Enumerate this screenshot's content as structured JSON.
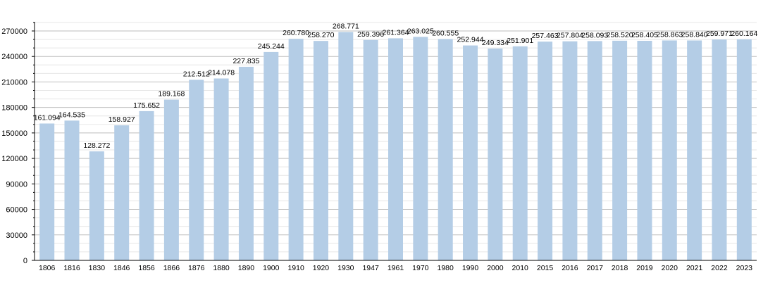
{
  "chart_data": {
    "type": "bar",
    "title": "",
    "xlabel": "",
    "ylabel": "",
    "ylim": [
      0,
      270000
    ],
    "yticks": [
      0,
      30000,
      60000,
      90000,
      120000,
      150000,
      180000,
      210000,
      240000,
      270000
    ],
    "ytick_labels": [
      "0",
      "30000",
      "60000",
      "90000",
      "120000",
      "150000",
      "180000",
      "210000",
      "240000",
      "270000"
    ],
    "grid": true,
    "bar_color": "#b4cde6",
    "categories": [
      "1806",
      "1816",
      "1830",
      "1846",
      "1856",
      "1866",
      "1876",
      "1880",
      "1890",
      "1900",
      "1910",
      "1920",
      "1930",
      "1947",
      "1961",
      "1970",
      "1980",
      "1990",
      "2000",
      "2010",
      "2015",
      "2016",
      "2017",
      "2018",
      "2019",
      "2020",
      "2021",
      "2022",
      "2023"
    ],
    "values": [
      161094,
      164535,
      128272,
      158927,
      175652,
      189168,
      212512,
      214078,
      227835,
      245244,
      260780,
      258270,
      268771,
      259396,
      261364,
      263025,
      260555,
      252944,
      249334,
      251901,
      257463,
      257804,
      258093,
      258520,
      258405,
      258863,
      258840,
      259971,
      260164
    ],
    "value_labels": [
      "161.094",
      "164.535",
      "128.272",
      "158.927",
      "175.652",
      "189.168",
      "212.512",
      "214.078",
      "227.835",
      "245.244",
      "260.780",
      "258.270",
      "268.771",
      "259.396",
      "261.364",
      "263.025",
      "260.555",
      "252.944",
      "249.334",
      "251.901",
      "257.463",
      "257.804",
      "258.093",
      "258.520",
      "258.405",
      "258.863",
      "258.840",
      "259.971",
      "260.164"
    ]
  }
}
